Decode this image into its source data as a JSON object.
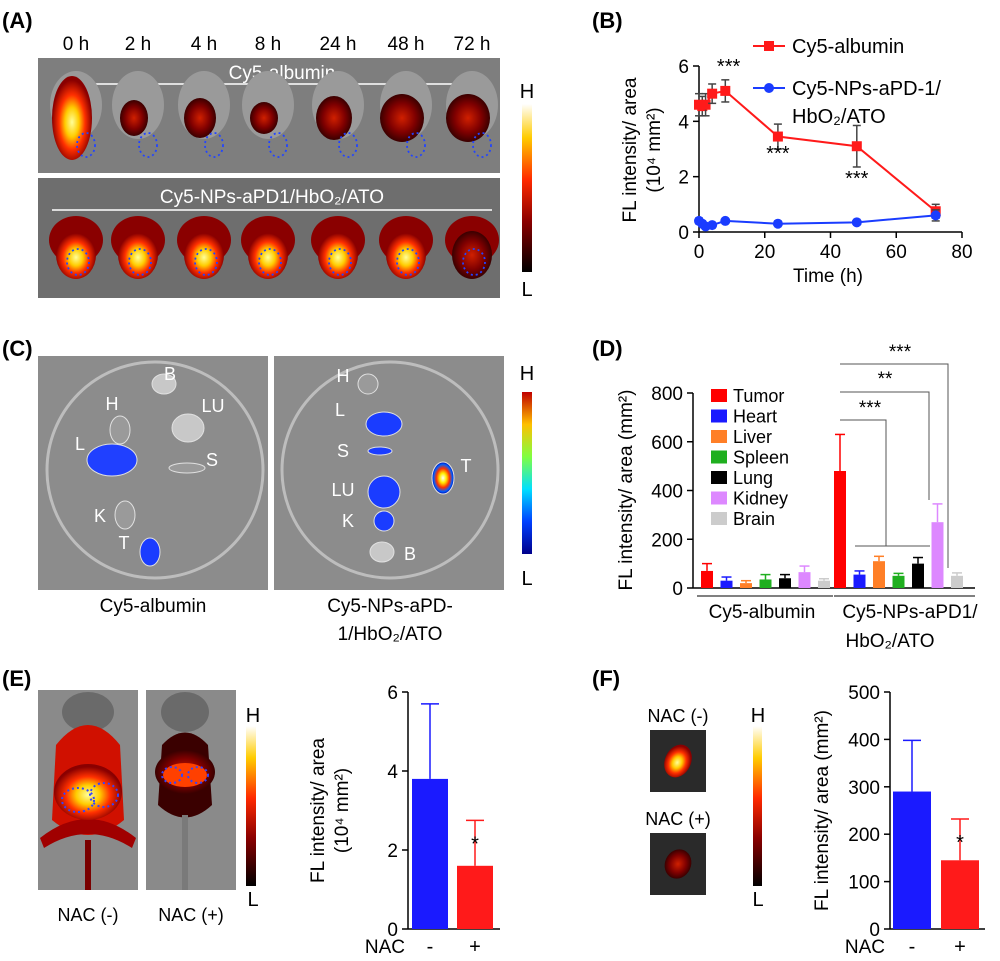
{
  "panels": {
    "A": {
      "label": "(A)",
      "times": [
        "0 h",
        "2 h",
        "4 h",
        "8 h",
        "24 h",
        "48 h",
        "72 h"
      ],
      "top_group": "Cy5-albumin",
      "bottom_group": "Cy5-NPs-aPD1/HbO₂/ATO",
      "scale_high": "H",
      "scale_low": "L"
    },
    "B": {
      "label": "(B)"
    },
    "C": {
      "label": "(C)",
      "left_caption": "Cy5-albumin",
      "right_caption_1": "Cy5-NPs-aPD-",
      "right_caption_2": "1/HbO₂/ATO",
      "left_organs": [
        "B",
        "H",
        "LU",
        "L",
        "S",
        "K",
        "T"
      ],
      "right_organs": [
        "H",
        "L",
        "S",
        "T",
        "LU",
        "K",
        "B"
      ],
      "scale_high": "H",
      "scale_low": "L"
    },
    "D": {
      "label": "(D)"
    },
    "E": {
      "label": "(E)",
      "img1": "NAC (-)",
      "img2": "NAC (+)",
      "scale_high": "H",
      "scale_low": "L"
    },
    "F": {
      "label": "(F)",
      "img1": "NAC (-)",
      "img2": "NAC (+)",
      "scale_high": "H",
      "scale_low": "L"
    }
  },
  "chart_data": [
    {
      "id": "B",
      "type": "line",
      "xlabel": "Time  (h)",
      "ylabel_1": "FL intensity/ area",
      "ylabel_2": "(10⁴ mm²)",
      "xlim": [
        0,
        80
      ],
      "ylim": [
        0,
        6
      ],
      "xticks": [
        "0",
        "20",
        "40",
        "60",
        "80"
      ],
      "yticks": [
        "0",
        "2",
        "4",
        "6"
      ],
      "series": [
        {
          "name": "Cy5-albumin",
          "color": "#ff1a1a",
          "marker": "square",
          "x": [
            0,
            1,
            2,
            4,
            8,
            24,
            48,
            72
          ],
          "y": [
            4.6,
            4.55,
            4.6,
            5.0,
            5.1,
            3.45,
            3.1,
            0.75
          ],
          "err": [
            0.4,
            0.35,
            0.4,
            0.35,
            0.4,
            0.45,
            0.75,
            0.25
          ]
        },
        {
          "name_1": "Cy5-NPs-aPD-1/",
          "name_2": "HbO₂/ATO",
          "color": "#1a3cff",
          "marker": "circle",
          "x": [
            0,
            1,
            2,
            4,
            8,
            24,
            48,
            72
          ],
          "y": [
            0.4,
            0.3,
            0.2,
            0.25,
            0.4,
            0.3,
            0.35,
            0.6
          ],
          "err": [
            0.1,
            0.05,
            0.05,
            0.05,
            0.05,
            0.05,
            0.05,
            0.2
          ]
        }
      ],
      "annotations": [
        {
          "text": "***",
          "x": 9,
          "y": 5.75
        },
        {
          "text": "***",
          "x": 24,
          "y": 2.6
        },
        {
          "text": "***",
          "x": 48,
          "y": 1.7
        }
      ]
    },
    {
      "id": "D",
      "type": "bar",
      "ylabel": "FL intensity/ area (mm²)",
      "ylim": [
        0,
        800
      ],
      "yticks": [
        "0",
        "200",
        "400",
        "600",
        "800"
      ],
      "groups": [
        "Cy5-albumin",
        "Cy5-NPs-aPD1/",
        "HbO₂/ATO"
      ],
      "categories": [
        "Tumor",
        "Heart",
        "Liver",
        "Spleen",
        "Lung",
        "Kidney",
        "Brain"
      ],
      "colors": [
        "#ff0000",
        "#1a1aff",
        "#ff7f27",
        "#1faf1f",
        "#000000",
        "#dd88ff",
        "#cccccc"
      ],
      "series": [
        {
          "group": "Cy5-albumin",
          "values": [
            70,
            30,
            20,
            35,
            40,
            65,
            30
          ],
          "err": [
            30,
            15,
            10,
            20,
            15,
            25,
            8
          ]
        },
        {
          "group": "Cy5-NPs-aPD1/HbO₂/ATO",
          "values": [
            480,
            55,
            110,
            50,
            100,
            270,
            50
          ],
          "err": [
            150,
            15,
            20,
            10,
            25,
            75,
            12
          ]
        }
      ],
      "significance": [
        "***",
        "**",
        "***"
      ]
    },
    {
      "id": "E",
      "type": "bar",
      "ylabel_1": "FL intensity/ area",
      "ylabel_2": "(10⁴ mm²)",
      "ylim": [
        0,
        6
      ],
      "yticks": [
        "0",
        "2",
        "4",
        "6"
      ],
      "xlabel": "NAC",
      "categories": [
        "-",
        "+"
      ],
      "values": [
        3.8,
        1.6
      ],
      "err": [
        1.9,
        1.15
      ],
      "colors": [
        "#1a1aff",
        "#ff1a1a"
      ],
      "significance": "*"
    },
    {
      "id": "F",
      "type": "bar",
      "ylabel": "FL intensity/ area (mm²)",
      "ylim": [
        0,
        500
      ],
      "yticks": [
        "0",
        "100",
        "200",
        "300",
        "400",
        "500"
      ],
      "xlabel": "NAC",
      "categories": [
        "-",
        "+"
      ],
      "values": [
        290,
        145
      ],
      "err": [
        108,
        87
      ],
      "colors": [
        "#1a1aff",
        "#ff1a1a"
      ],
      "significance": "*"
    }
  ]
}
